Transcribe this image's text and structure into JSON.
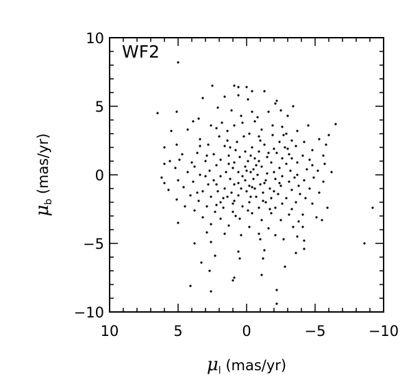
{
  "chart_data": {
    "type": "scatter",
    "panel_label": "WF2",
    "xlabel": {
      "symbol": "μ",
      "subscript": "l",
      "units": " (mas/yr)"
    },
    "ylabel": {
      "symbol": "μ",
      "subscript": "b",
      "units": " (mas/yr)"
    },
    "xlim": [
      10,
      -10
    ],
    "ylim": [
      -10,
      10
    ],
    "x_reversed": true,
    "xticks": [
      10,
      5,
      0,
      -5,
      -10
    ],
    "xtick_labels": [
      "10",
      "5",
      "0",
      "−5",
      "−10"
    ],
    "yticks": [
      -10,
      -5,
      0,
      5,
      10
    ],
    "ytick_labels": [
      "−10",
      "−5",
      "0",
      "5",
      "10"
    ],
    "grid": false,
    "marker_color": "#000000",
    "points": [
      [
        5.0,
        8.2
      ],
      [
        2.5,
        6.5
      ],
      [
        0.9,
        6.5
      ],
      [
        0.6,
        6.4
      ],
      [
        0.0,
        6.4
      ],
      [
        -1.3,
        6.1
      ],
      [
        -0.4,
        6.1
      ],
      [
        0.6,
        5.8
      ],
      [
        1.6,
        5.7
      ],
      [
        -0.1,
        5.5
      ],
      [
        -2.2,
        5.4
      ],
      [
        -2.1,
        5.2
      ],
      [
        3.2,
        5.6
      ],
      [
        -3.4,
        5.0
      ],
      [
        6.5,
        4.5
      ],
      [
        5.1,
        4.6
      ],
      [
        2.1,
        4.9
      ],
      [
        1.1,
        4.7
      ],
      [
        -0.4,
        4.6
      ],
      [
        -1.6,
        4.6
      ],
      [
        -2.5,
        4.7
      ],
      [
        0.4,
        4.3
      ],
      [
        -0.8,
        4.2
      ],
      [
        -3.0,
        4.3
      ],
      [
        -6.5,
        3.7
      ],
      [
        -4.5,
        3.6
      ],
      [
        3.9,
        3.9
      ],
      [
        3.5,
        4.1
      ],
      [
        4.3,
        3.3
      ],
      [
        5.5,
        3.2
      ],
      [
        2.6,
        3.6
      ],
      [
        2.2,
        3.4
      ],
      [
        1.8,
        3.8
      ],
      [
        0.9,
        3.6
      ],
      [
        -0.6,
        3.9
      ],
      [
        -1.1,
        3.3
      ],
      [
        -2.6,
        3.5
      ],
      [
        -3.7,
        3.2
      ],
      [
        -0.2,
        3.0
      ],
      [
        -1.9,
        2.9
      ],
      [
        -2.9,
        3.0
      ],
      [
        -5.3,
        2.6
      ],
      [
        -6.0,
        2.9
      ],
      [
        3.4,
        2.6
      ],
      [
        1.4,
        2.5
      ],
      [
        0.2,
        2.8
      ],
      [
        -1.0,
        2.5
      ],
      [
        -2.4,
        2.4
      ],
      [
        -3.3,
        2.5
      ],
      [
        -4.2,
        2.4
      ],
      [
        -5.8,
        2.2
      ],
      [
        6.0,
        2.0
      ],
      [
        5.1,
        2.2
      ],
      [
        2.8,
        2.2
      ],
      [
        1.6,
        2.1
      ],
      [
        -0.4,
        2.0
      ],
      [
        -1.3,
        2.2
      ],
      [
        -2.0,
        1.9
      ],
      [
        -2.8,
        2.0
      ],
      [
        -3.6,
        2.1
      ],
      [
        -4.8,
        1.8
      ],
      [
        0.8,
        1.8
      ],
      [
        -0.9,
        1.7
      ],
      [
        -2.2,
        1.6
      ],
      [
        -3.1,
        1.5
      ],
      [
        -4.1,
        1.4
      ],
      [
        -5.6,
        1.4
      ],
      [
        4.7,
        1.5
      ],
      [
        3.6,
        1.6
      ],
      [
        2.4,
        1.5
      ],
      [
        1.3,
        1.4
      ],
      [
        0.5,
        1.3
      ],
      [
        -0.3,
        1.4
      ],
      [
        -1.5,
        1.3
      ],
      [
        -2.6,
        1.2
      ],
      [
        -3.3,
        1.2
      ],
      [
        5.6,
        1.0
      ],
      [
        4.0,
        0.9
      ],
      [
        3.0,
        1.0
      ],
      [
        1.9,
        1.1
      ],
      [
        0.9,
        0.9
      ],
      [
        -0.1,
        1.0
      ],
      [
        -0.9,
        1.0
      ],
      [
        -1.8,
        0.9
      ],
      [
        -2.9,
        0.8
      ],
      [
        -3.7,
        0.9
      ],
      [
        -4.6,
        1.1
      ],
      [
        -5.7,
        0.8
      ],
      [
        6.0,
        0.8
      ],
      [
        2.2,
        0.7
      ],
      [
        0.1,
        0.6
      ],
      [
        -1.1,
        0.6
      ],
      [
        -2.4,
        0.5
      ],
      [
        -4.4,
        0.4
      ],
      [
        5.2,
        0.5
      ],
      [
        3.8,
        0.6
      ],
      [
        1.0,
        0.5
      ],
      [
        -0.5,
        0.4
      ],
      [
        -3.2,
        0.3
      ],
      [
        -5.2,
        0.3
      ],
      [
        4.3,
        0.2
      ],
      [
        2.7,
        0.3
      ],
      [
        1.5,
        0.2
      ],
      [
        0.6,
        0.2
      ],
      [
        -0.3,
        0.2
      ],
      [
        -1.5,
        0.1
      ],
      [
        -2.0,
        0.2
      ],
      [
        -3.7,
        0.0
      ],
      [
        -6.2,
        0.2
      ],
      [
        3.4,
        0.0
      ],
      [
        1.9,
        -0.1
      ],
      [
        0.3,
        -0.1
      ],
      [
        -0.8,
        0.0
      ],
      [
        -2.6,
        -0.1
      ],
      [
        -4.9,
        -0.2
      ],
      [
        6.2,
        -0.2
      ],
      [
        5.0,
        -0.4
      ],
      [
        3.9,
        -0.5
      ],
      [
        2.4,
        -0.4
      ],
      [
        1.2,
        -0.3
      ],
      [
        0.1,
        -0.4
      ],
      [
        -0.5,
        -0.3
      ],
      [
        -1.4,
        -0.4
      ],
      [
        -2.1,
        -0.3
      ],
      [
        -3.1,
        -0.5
      ],
      [
        -4.2,
        -0.4
      ],
      [
        -5.6,
        -0.5
      ],
      [
        6.0,
        -0.6
      ],
      [
        2.8,
        -0.7
      ],
      [
        0.9,
        -0.7
      ],
      [
        -0.2,
        -0.8
      ],
      [
        -1.0,
        -0.7
      ],
      [
        -2.5,
        -0.8
      ],
      [
        -3.8,
        -0.8
      ],
      [
        4.6,
        -0.9
      ],
      [
        1.6,
        -1.0
      ],
      [
        0.4,
        -1.0
      ],
      [
        -0.6,
        -1.0
      ],
      [
        -1.7,
        -1.0
      ],
      [
        -3.3,
        -1.1
      ],
      [
        -4.6,
        -1.0
      ],
      [
        5.7,
        -1.1
      ],
      [
        3.2,
        -1.2
      ],
      [
        2.1,
        -1.2
      ],
      [
        1.1,
        -1.3
      ],
      [
        0.0,
        -1.2
      ],
      [
        -1.2,
        -1.3
      ],
      [
        -2.3,
        -1.4
      ],
      [
        -3.9,
        -1.4
      ],
      [
        -5.3,
        -1.3
      ],
      [
        4.1,
        -1.5
      ],
      [
        2.6,
        -1.6
      ],
      [
        1.4,
        -1.6
      ],
      [
        0.6,
        -1.5
      ],
      [
        -0.7,
        -1.6
      ],
      [
        -1.8,
        -1.7
      ],
      [
        -2.9,
        -1.7
      ],
      [
        -4.3,
        -1.7
      ],
      [
        5.1,
        -1.8
      ],
      [
        3.5,
        -1.9
      ],
      [
        1.9,
        -2.0
      ],
      [
        0.9,
        -1.9
      ],
      [
        -0.2,
        -2.0
      ],
      [
        -1.4,
        -2.0
      ],
      [
        -2.6,
        -2.1
      ],
      [
        -3.6,
        -2.0
      ],
      [
        -4.8,
        -2.1
      ],
      [
        4.5,
        -2.3
      ],
      [
        2.9,
        -2.3
      ],
      [
        1.7,
        -2.4
      ],
      [
        0.3,
        -2.3
      ],
      [
        -0.9,
        -2.4
      ],
      [
        -2.1,
        -2.4
      ],
      [
        -3.3,
        -2.5
      ],
      [
        -5.9,
        -2.4
      ],
      [
        3.8,
        -2.6
      ],
      [
        2.3,
        -2.7
      ],
      [
        1.0,
        -2.7
      ],
      [
        -0.4,
        -2.8
      ],
      [
        -1.8,
        -2.8
      ],
      [
        -3.1,
        -2.9
      ],
      [
        -4.1,
        -2.9
      ],
      [
        -5.1,
        -3.1
      ],
      [
        -9.2,
        -2.4
      ],
      [
        3.2,
        -3.1
      ],
      [
        1.9,
        -3.2
      ],
      [
        0.5,
        -3.2
      ],
      [
        -1.1,
        -3.3
      ],
      [
        -2.5,
        -3.3
      ],
      [
        -3.8,
        -3.4
      ],
      [
        -5.5,
        -3.3
      ],
      [
        5.0,
        -3.5
      ],
      [
        2.6,
        -3.6
      ],
      [
        1.3,
        -3.7
      ],
      [
        -0.2,
        -3.8
      ],
      [
        -1.6,
        -3.9
      ],
      [
        -3.4,
        -3.8
      ],
      [
        -4.1,
        -3.8
      ],
      [
        2.9,
        -4.2
      ],
      [
        1.6,
        -4.3
      ],
      [
        0.4,
        -4.4
      ],
      [
        -0.9,
        -4.3
      ],
      [
        -2.1,
        -4.4
      ],
      [
        -3.7,
        -4.5
      ],
      [
        -4.2,
        -4.8
      ],
      [
        3.8,
        -5.0
      ],
      [
        2.6,
        -4.9
      ],
      [
        -1.0,
        -4.7
      ],
      [
        -2.7,
        -4.7
      ],
      [
        -4.2,
        -5.4
      ],
      [
        -8.6,
        -5.0
      ],
      [
        2.3,
        -5.9
      ],
      [
        0.6,
        -5.6
      ],
      [
        -1.3,
        -5.5
      ],
      [
        -3.6,
        -5.7
      ],
      [
        3.3,
        -6.4
      ],
      [
        0.5,
        -6.1
      ],
      [
        -1.2,
        -6.1
      ],
      [
        2.7,
        -7.0
      ],
      [
        -1.1,
        -7.3
      ],
      [
        0.9,
        -7.5
      ],
      [
        -2.8,
        -6.7
      ],
      [
        1.0,
        -7.7
      ],
      [
        4.1,
        -8.1
      ],
      [
        2.6,
        -8.5
      ],
      [
        -2.2,
        -8.4
      ],
      [
        -2.2,
        -9.4
      ],
      [
        2.2,
        -2.2
      ],
      [
        0.8,
        -3.0
      ],
      [
        -0.4,
        -0.9
      ],
      [
        0.1,
        1.7
      ],
      [
        -1.9,
        3.6
      ],
      [
        2.0,
        2.8
      ],
      [
        0.6,
        -0.6
      ],
      [
        -0.3,
        -1.6
      ],
      [
        1.3,
        0.8
      ],
      [
        -1.3,
        -0.6
      ],
      [
        -0.9,
        2.8
      ],
      [
        1.4,
        3.2
      ],
      [
        -2.0,
        -1.2
      ],
      [
        3.0,
        -0.1
      ],
      [
        -3.0,
        1.9
      ],
      [
        0.3,
        3.8
      ],
      [
        2.2,
        -0.7
      ],
      [
        -0.7,
        0.7
      ],
      [
        -1.6,
        1.6
      ],
      [
        1.7,
        -1.7
      ],
      [
        0.7,
        2.4
      ],
      [
        -2.7,
        2.9
      ],
      [
        4.9,
        1.1
      ],
      [
        -4.8,
        0.7
      ],
      [
        3.4,
        2.1
      ],
      [
        -1.2,
        -1.9
      ],
      [
        0.0,
        0.3
      ],
      [
        -0.1,
        -2.6
      ],
      [
        1.0,
        -2.1
      ],
      [
        -2.4,
        -0.6
      ],
      [
        2.9,
        1.4
      ],
      [
        -3.5,
        -0.2
      ],
      [
        3.6,
        -1.3
      ],
      [
        -0.6,
        1.2
      ],
      [
        1.2,
        2.0
      ],
      [
        -1.7,
        -2.5
      ]
    ]
  }
}
